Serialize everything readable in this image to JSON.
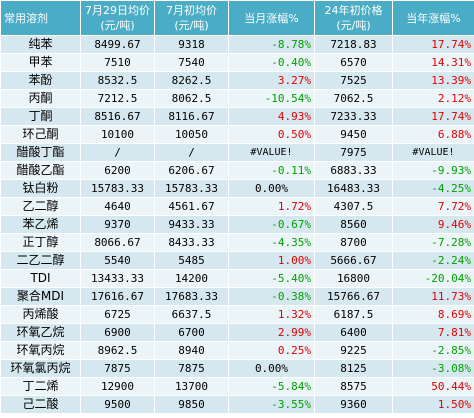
{
  "headers": [
    {
      "line1": "常用溶剂",
      "line2": ""
    },
    {
      "line1": "7月29日均价",
      "line2": "(元/吨)"
    },
    {
      "line1": "7月初均价",
      "line2": "(元/吨)"
    },
    {
      "line1": "当月涨幅%",
      "line2": ""
    },
    {
      "line1": "24年初价格",
      "line2": "(元/吨)"
    },
    {
      "line1": "当年涨幅%",
      "line2": ""
    }
  ],
  "rows": [
    {
      "name": "纯苯",
      "p729": "8499.67",
      "pinit": "9318",
      "mchg": "-8.78%",
      "mcolor": "green",
      "y24": "7218.83",
      "ychg": "17.74%",
      "ycolor": "red"
    },
    {
      "name": "甲苯",
      "p729": "7510",
      "pinit": "7540",
      "mchg": "-0.40%",
      "mcolor": "green",
      "y24": "6570",
      "ychg": "14.31%",
      "ycolor": "red"
    },
    {
      "name": "苯酚",
      "p729": "8532.5",
      "pinit": "8262.5",
      "mchg": "3.27%",
      "mcolor": "red",
      "y24": "7525",
      "ychg": "13.39%",
      "ycolor": "red"
    },
    {
      "name": "丙酮",
      "p729": "7212.5",
      "pinit": "8062.5",
      "mchg": "-10.54%",
      "mcolor": "green",
      "y24": "7062.5",
      "ychg": "2.12%",
      "ycolor": "red"
    },
    {
      "name": "丁酮",
      "p729": "8516.67",
      "pinit": "8116.67",
      "mchg": "4.93%",
      "mcolor": "red",
      "y24": "7233.33",
      "ychg": "17.74%",
      "ycolor": "red"
    },
    {
      "name": "环己酮",
      "p729": "10100",
      "pinit": "10050",
      "mchg": "0.50%",
      "mcolor": "red",
      "y24": "9450",
      "ychg": "6.88%",
      "ycolor": "red"
    },
    {
      "name": "醋酸丁酯",
      "p729": "/",
      "pinit": "/",
      "mchg": "#VALUE!",
      "mcolor": "err",
      "y24": "7975",
      "ychg": "#VALUE!",
      "ycolor": "err"
    },
    {
      "name": "醋酸乙酯",
      "p729": "6200",
      "pinit": "6206.67",
      "mchg": "-0.11%",
      "mcolor": "green",
      "y24": "6883.33",
      "ychg": "-9.93%",
      "ycolor": "green"
    },
    {
      "name": "钛白粉",
      "p729": "15783.33",
      "pinit": "15783.33",
      "mchg": "0.00%",
      "mcolor": "black",
      "y24": "16483.33",
      "ychg": "-4.25%",
      "ycolor": "green"
    },
    {
      "name": "乙二醇",
      "p729": "4640",
      "pinit": "4561.67",
      "mchg": "1.72%",
      "mcolor": "red",
      "y24": "4307.5",
      "ychg": "7.72%",
      "ycolor": "red"
    },
    {
      "name": "苯乙烯",
      "p729": "9370",
      "pinit": "9433.33",
      "mchg": "-0.67%",
      "mcolor": "green",
      "y24": "8560",
      "ychg": "9.46%",
      "ycolor": "red"
    },
    {
      "name": "正丁醇",
      "p729": "8066.67",
      "pinit": "8433.33",
      "mchg": "-4.35%",
      "mcolor": "green",
      "y24": "8700",
      "ychg": "-7.28%",
      "ycolor": "green"
    },
    {
      "name": "二乙二醇",
      "p729": "5540",
      "pinit": "5485",
      "mchg": "1.00%",
      "mcolor": "red",
      "y24": "5666.67",
      "ychg": "-2.24%",
      "ycolor": "green"
    },
    {
      "name": "TDI",
      "p729": "13433.33",
      "pinit": "14200",
      "mchg": "-5.40%",
      "mcolor": "green",
      "y24": "16800",
      "ychg": "-20.04%",
      "ycolor": "green"
    },
    {
      "name": "聚合MDI",
      "p729": "17616.67",
      "pinit": "17683.33",
      "mchg": "-0.38%",
      "mcolor": "green",
      "y24": "15766.67",
      "ychg": "11.73%",
      "ycolor": "red"
    },
    {
      "name": "丙烯酸",
      "p729": "6725",
      "pinit": "6637.5",
      "mchg": "1.32%",
      "mcolor": "red",
      "y24": "6187.5",
      "ychg": "8.69%",
      "ycolor": "red"
    },
    {
      "name": "环氧乙烷",
      "p729": "6900",
      "pinit": "6700",
      "mchg": "2.99%",
      "mcolor": "red",
      "y24": "6400",
      "ychg": "7.81%",
      "ycolor": "red"
    },
    {
      "name": "环氧丙烷",
      "p729": "8962.5",
      "pinit": "8940",
      "mchg": "0.25%",
      "mcolor": "red",
      "y24": "9225",
      "ychg": "-2.85%",
      "ycolor": "green"
    },
    {
      "name": "环氧氯丙烷",
      "p729": "7875",
      "pinit": "7875",
      "mchg": "0.00%",
      "mcolor": "black",
      "y24": "8125",
      "ychg": "-3.08%",
      "ycolor": "green"
    },
    {
      "name": "丁二烯",
      "p729": "12900",
      "pinit": "13700",
      "mchg": "-5.84%",
      "mcolor": "green",
      "y24": "8575",
      "ychg": "50.44%",
      "ycolor": "red"
    },
    {
      "name": "己二酸",
      "p729": "9500",
      "pinit": "9850",
      "mchg": "-3.55%",
      "mcolor": "green",
      "y24": "9360",
      "ychg": "1.50%",
      "ycolor": "red"
    }
  ]
}
